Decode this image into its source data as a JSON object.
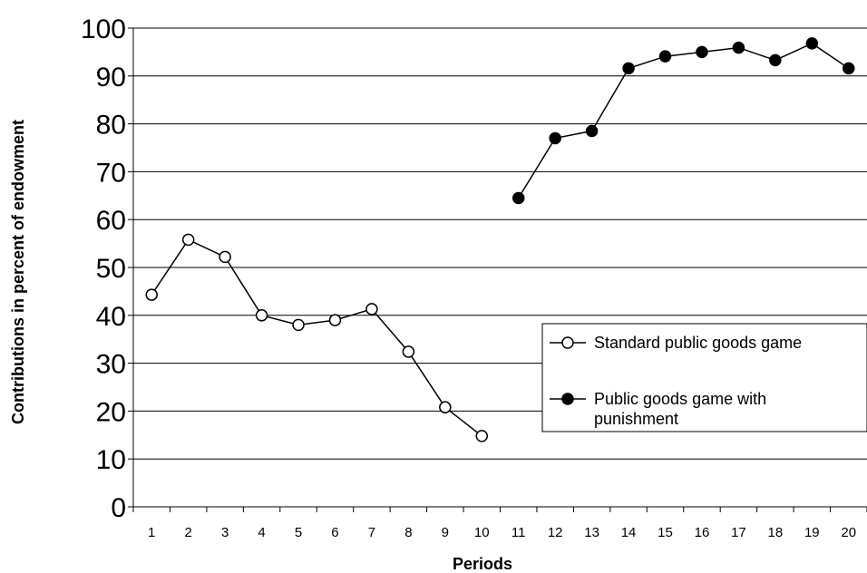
{
  "chart_data": {
    "type": "line",
    "title": "",
    "xlabel": "Periods",
    "ylabel": "Contributions in percent of endowment",
    "ylim": [
      0,
      100
    ],
    "yticks": [
      0,
      10,
      20,
      30,
      40,
      50,
      60,
      70,
      80,
      90,
      100
    ],
    "categories": [
      "1",
      "2",
      "3",
      "4",
      "5",
      "6",
      "7",
      "8",
      "9",
      "10",
      "11",
      "12",
      "13",
      "14",
      "15",
      "16",
      "17",
      "18",
      "19",
      "20"
    ],
    "grid": "horizontal",
    "legend_position": "right",
    "series": [
      {
        "name": "Standard public goods game",
        "marker": "open-circle",
        "x": [
          1,
          2,
          3,
          4,
          5,
          6,
          7,
          8,
          9,
          10
        ],
        "values": [
          44.3,
          55.8,
          52.2,
          40.0,
          38.0,
          39.0,
          41.3,
          32.4,
          20.8,
          14.8
        ]
      },
      {
        "name": "Public goods game with punishment",
        "marker": "filled-circle",
        "x": [
          11,
          12,
          13,
          14,
          15,
          16,
          17,
          18,
          19,
          20
        ],
        "values": [
          64.5,
          77.0,
          78.5,
          91.6,
          94.1,
          95.0,
          95.9,
          93.3,
          96.8,
          91.6
        ]
      }
    ]
  }
}
